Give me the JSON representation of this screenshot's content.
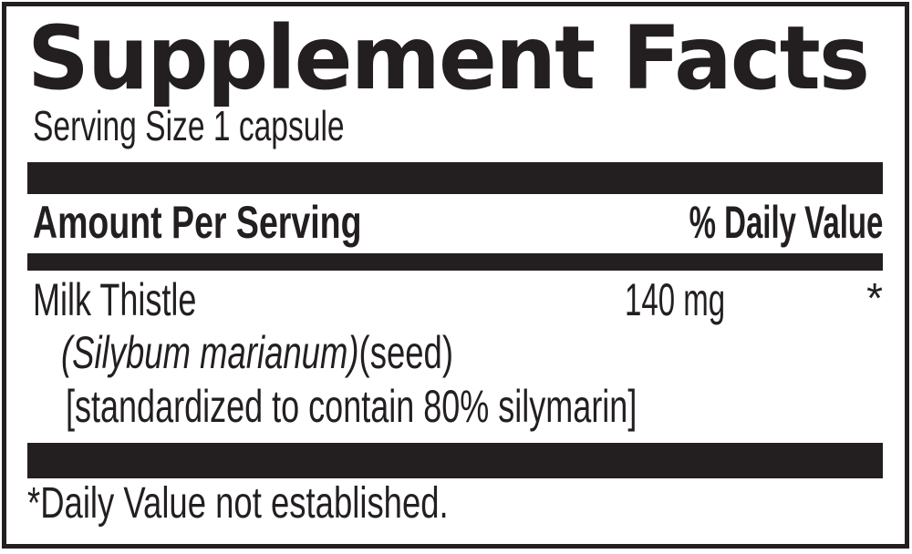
{
  "colors": {
    "ink": "#231f20",
    "background": "#ffffff"
  },
  "label": {
    "title": "Supplement Facts",
    "serving_size": "Serving Size 1 capsule",
    "header": {
      "amount": "Amount Per Serving",
      "daily_value": "% Daily Value"
    },
    "ingredients": [
      {
        "name": "Milk Thistle",
        "amount": "140 mg",
        "daily_value": "*",
        "latin_italic": "(Silybum marianum)",
        "latin_regular": "(seed)",
        "standardization": "[standardized to contain 80% silymarin]"
      }
    ],
    "footnote": "*Daily Value not established."
  }
}
